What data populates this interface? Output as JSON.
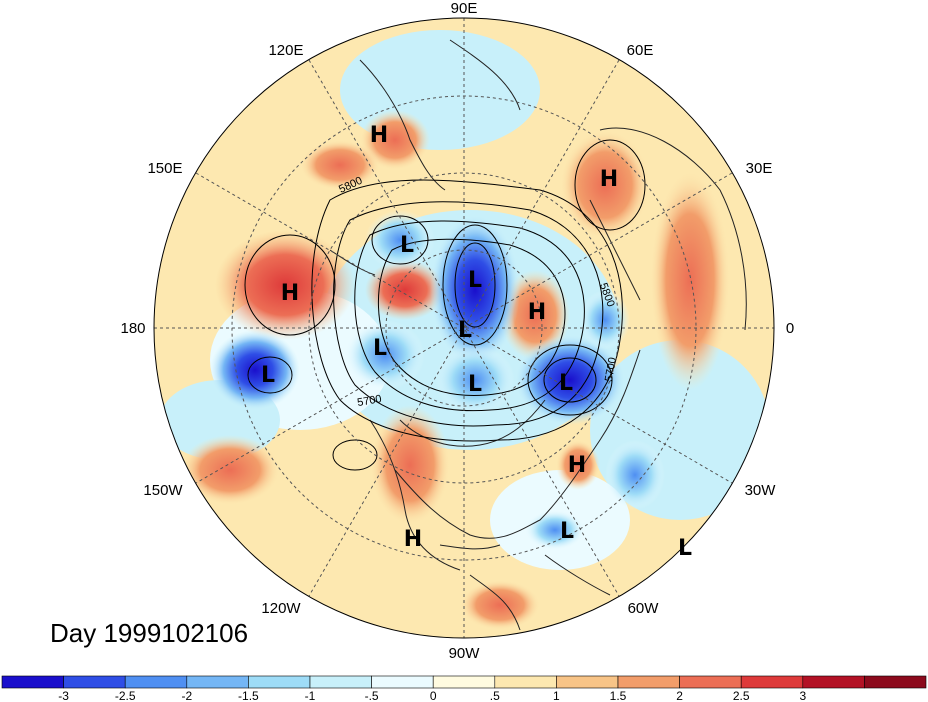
{
  "longitude_labels": {
    "e90": "90E",
    "e120": "120E",
    "e60": "60E",
    "e150": "150E",
    "e30": "30E",
    "l180": "180",
    "l0": "0",
    "w150": "150W",
    "w30": "30W",
    "w120": "120W",
    "w60": "60W",
    "w90": "90W"
  },
  "centers": [
    {
      "type": "H",
      "color": "high"
    },
    {
      "type": "H",
      "color": "high"
    },
    {
      "type": "H",
      "color": "high"
    },
    {
      "type": "H",
      "color": "high"
    },
    {
      "type": "H",
      "color": "high"
    },
    {
      "type": "H",
      "color": "high"
    },
    {
      "type": "L",
      "color": "low"
    },
    {
      "type": "L",
      "color": "low"
    },
    {
      "type": "L",
      "color": "low"
    },
    {
      "type": "L",
      "color": "low"
    },
    {
      "type": "L",
      "color": "low"
    },
    {
      "type": "L",
      "color": "low"
    },
    {
      "type": "L",
      "color": "low"
    },
    {
      "type": "L",
      "color": "low"
    },
    {
      "type": "L",
      "color": "low"
    }
  ],
  "contour_labels": {
    "c1": "5800",
    "c2": "5700",
    "c3": "5800",
    "c4": "5700"
  },
  "title": "Day 1999102106",
  "colorbar": {
    "colors": [
      "#1a0fcc",
      "#2f4ee6",
      "#4f8ff2",
      "#74b6f5",
      "#9edcf7",
      "#c8f0fa",
      "#ebfbff",
      "#fffbe0",
      "#fde8b0",
      "#f8c487",
      "#f29d6a",
      "#ec6e55",
      "#de3a3a",
      "#b31225",
      "#8c0a1c"
    ],
    "tick_labels": [
      "-3",
      "-2.5",
      "-2",
      "-1.5",
      "-1",
      "-.5",
      "0",
      ".5",
      "1",
      "1.5",
      "2",
      "2.5",
      "3"
    ]
  }
}
